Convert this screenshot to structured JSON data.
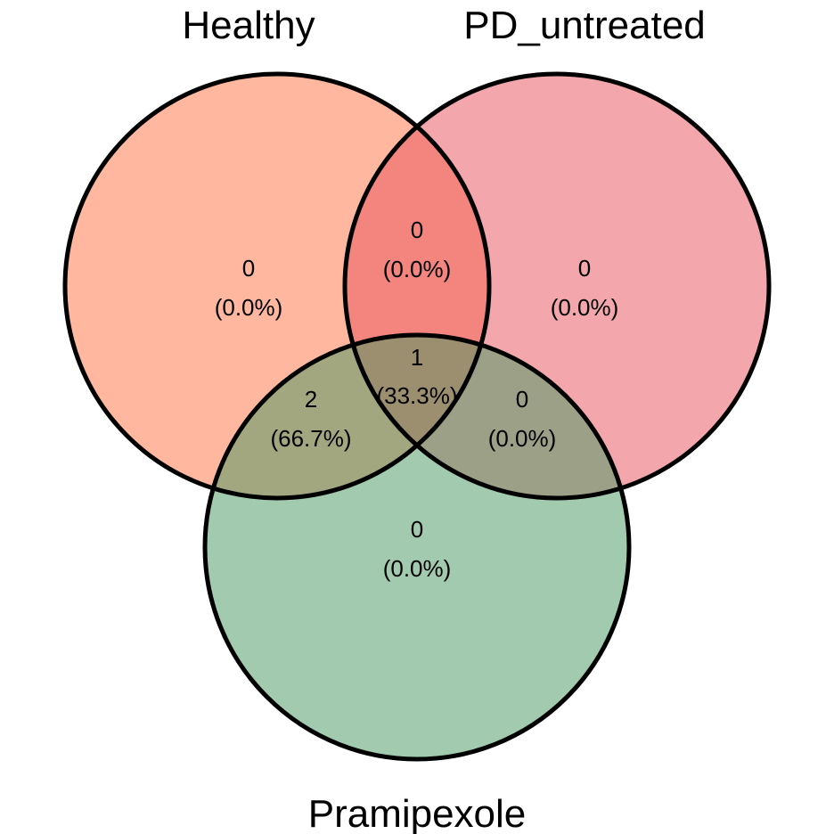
{
  "venn": {
    "sets": [
      {
        "name": "Healthy",
        "color": "#FF8A65"
      },
      {
        "name": "PD_untreated",
        "color": "#E8575F"
      },
      {
        "name": "Pramipexole",
        "color": "#4C9A64"
      }
    ],
    "regions": {
      "healthy_only": {
        "count": "0",
        "percent": "(0.0%)"
      },
      "pd_only": {
        "count": "0",
        "percent": "(0.0%)"
      },
      "pramipexole_only": {
        "count": "0",
        "percent": "(0.0%)"
      },
      "healthy_pd": {
        "count": "0",
        "percent": "(0.0%)"
      },
      "healthy_pramipexole": {
        "count": "2",
        "percent": "(66.7%)"
      },
      "pd_pramipexole": {
        "count": "0",
        "percent": "(0.0%)"
      },
      "all_three": {
        "count": "1",
        "percent": "(33.3%)"
      }
    }
  }
}
